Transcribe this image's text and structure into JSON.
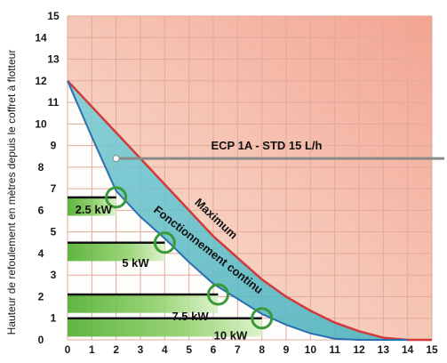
{
  "chart_data": {
    "type": "area",
    "ylabel": "Hauteur de refoulement  en mètres depuis le coffret à flotteur",
    "xlabel": "",
    "xlim": [
      0,
      15
    ],
    "ylim": [
      0,
      15
    ],
    "x_ticks": [
      0,
      1,
      2,
      3,
      4,
      5,
      6,
      7,
      8,
      9,
      10,
      11,
      12,
      13,
      14,
      15
    ],
    "y_ticks": [
      0,
      1,
      2,
      3,
      4,
      5,
      6,
      7,
      8,
      9,
      10,
      11,
      12,
      13,
      14,
      15
    ],
    "grid": true,
    "series": [
      {
        "name": "Maximum",
        "color": "#d23a3a",
        "x": [
          0,
          1,
          2,
          3,
          4,
          5,
          6,
          7,
          8,
          9,
          10,
          11,
          12,
          13,
          14,
          15
        ],
        "y": [
          12,
          10.8,
          9.6,
          8.4,
          7.2,
          6.0,
          4.8,
          3.8,
          2.8,
          2.0,
          1.35,
          0.8,
          0.4,
          0.1,
          0.0,
          0.0
        ]
      },
      {
        "name": "Fonctionnement continu",
        "color": "#2a6fb0",
        "x": [
          0,
          1,
          2,
          3,
          4,
          5,
          6,
          7,
          8,
          9,
          10,
          11,
          12,
          13,
          14
        ],
        "y": [
          12,
          9.4,
          6.9,
          5.7,
          4.7,
          3.6,
          2.6,
          1.9,
          1.2,
          0.7,
          0.3,
          0.05,
          0.0,
          0.0,
          0.0
        ]
      }
    ],
    "operating_points": [
      {
        "label": "2.5 kW",
        "x": 2,
        "y": 6.6
      },
      {
        "label": "5 kW",
        "x": 4,
        "y": 4.5
      },
      {
        "label": "7.5 kW",
        "x": 6.2,
        "y": 2.1
      },
      {
        "label": "10 kW",
        "x": 8,
        "y": 1.0
      }
    ],
    "annotations": {
      "reference_line_label": "ECP 1A - STD 15 L/h",
      "reference_line_y": 8.4,
      "reference_line_x_start": 2,
      "maximum_label": "Maximum",
      "continuous_label": "Fonctionnement continu"
    },
    "colors": {
      "band_fill": "#5bbcc4",
      "band_outline": "#2a6fb0",
      "maximum_line": "#d23a3a",
      "danger_zone": "#f4b8a6",
      "bar_green": "#6dbf4a",
      "marker_green": "#3a9a3a"
    }
  }
}
